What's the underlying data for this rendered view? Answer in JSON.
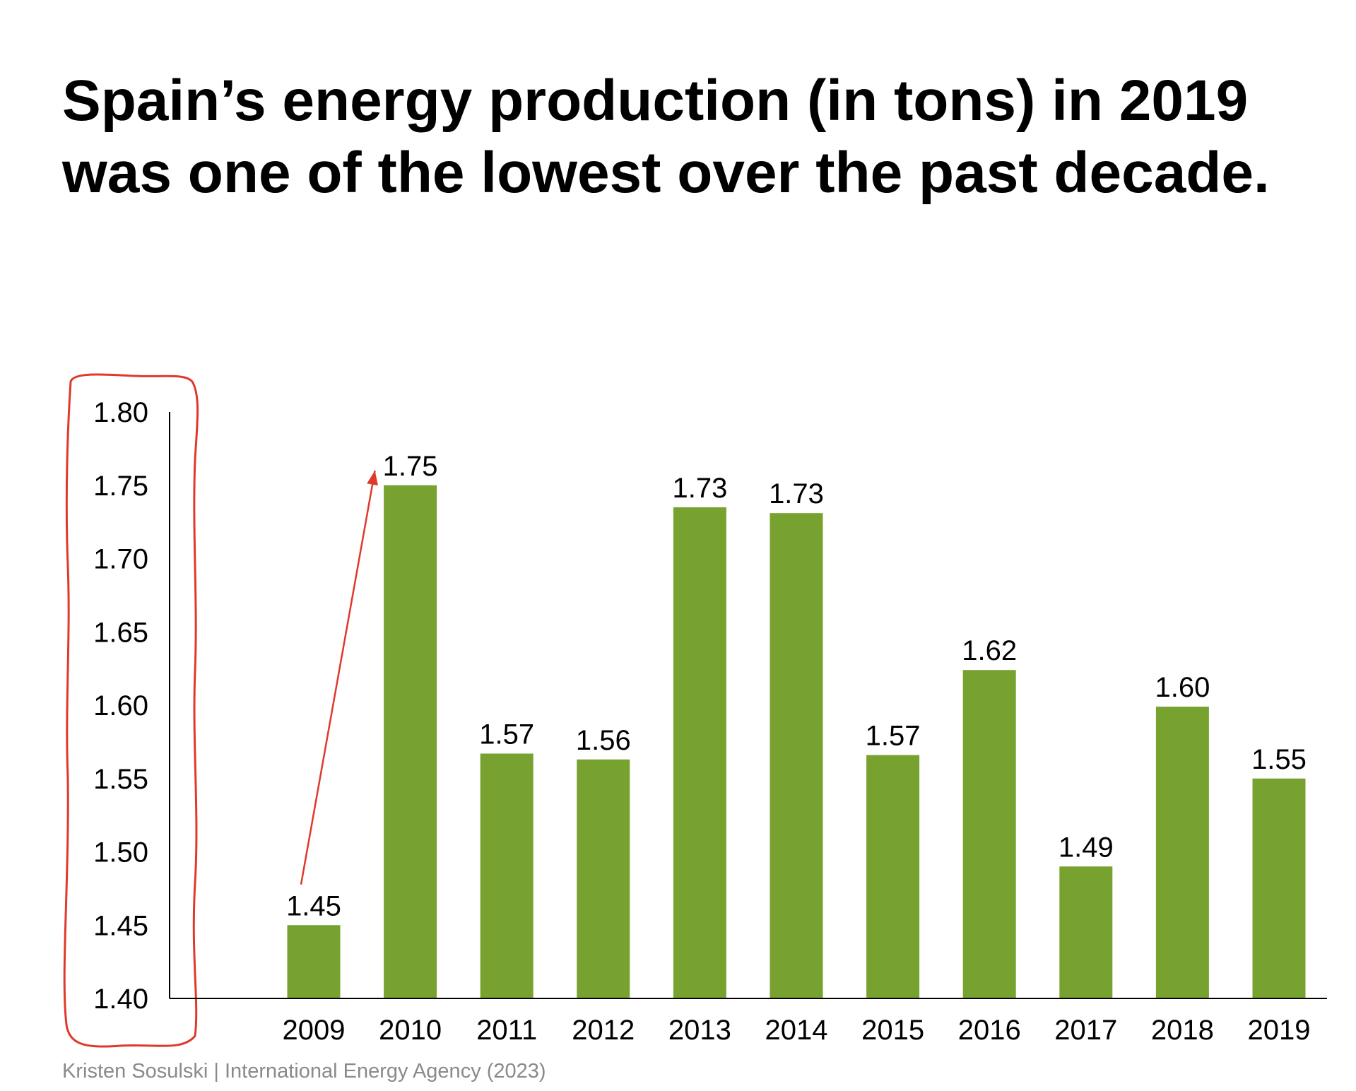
{
  "title": {
    "line1": "Spain’s energy production (in tons) in 2019",
    "line2": "was one of the lowest over the past decade."
  },
  "source": "Kristen Sosulski | International Energy Agency (2023)",
  "colors": {
    "bar": "#78a22f",
    "annotation": "#e0392b",
    "axis": "#000000",
    "source_text": "#8a8a8a"
  },
  "chart_data": {
    "type": "bar",
    "categories": [
      "2009",
      "2010",
      "2011",
      "2012",
      "2013",
      "2014",
      "2015",
      "2016",
      "2017",
      "2018",
      "2019"
    ],
    "values": [
      1.45,
      1.75,
      1.567,
      1.563,
      1.735,
      1.731,
      1.566,
      1.624,
      1.49,
      1.599,
      1.55
    ],
    "data_labels": [
      "1.45",
      "1.75",
      "1.57",
      "1.56",
      "1.73",
      "1.73",
      "1.57",
      "1.62",
      "1.49",
      "1.60",
      "1.55"
    ],
    "yticks": [
      "1.40",
      "1.45",
      "1.50",
      "1.55",
      "1.60",
      "1.65",
      "1.70",
      "1.75",
      "1.80"
    ],
    "ylim": [
      1.4,
      1.8
    ],
    "grid": false,
    "annotations": [
      {
        "type": "arrow",
        "from_category": "2009",
        "to_category": "2010",
        "from_value": 1.47,
        "to_value": 1.76
      },
      {
        "type": "circled-axis",
        "target": "y-axis tick labels"
      }
    ]
  }
}
